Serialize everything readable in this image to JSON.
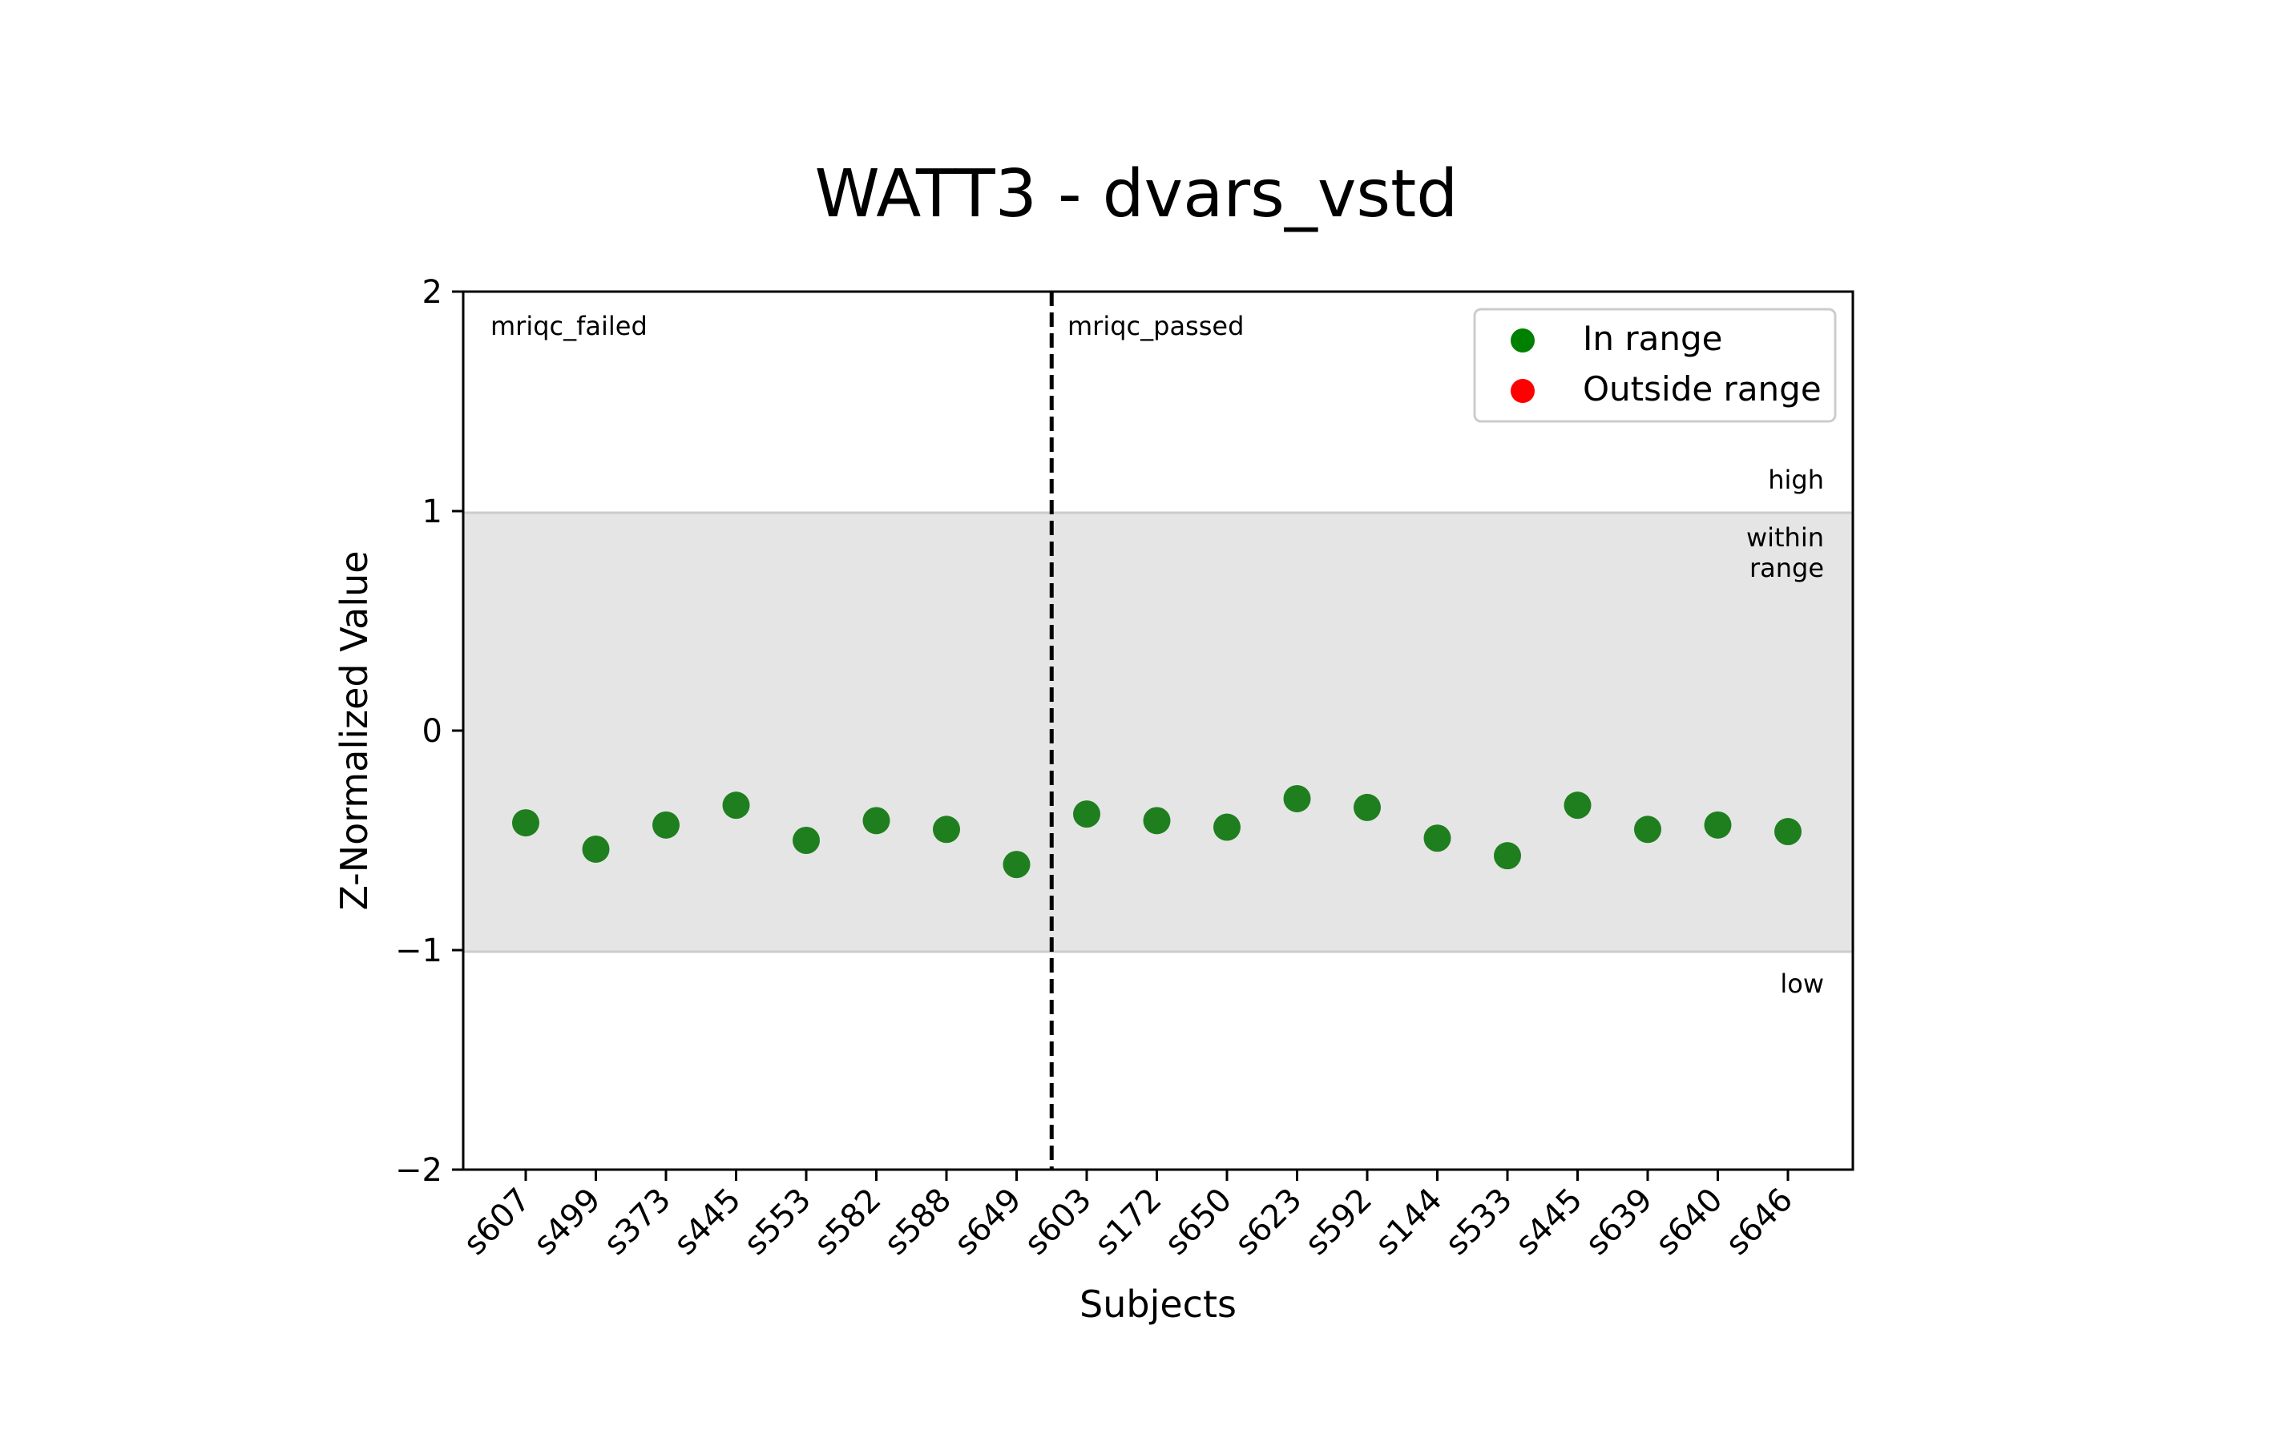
{
  "chart_data": {
    "type": "scatter",
    "title": "WATT3 - dvars_vstd",
    "xlabel": "Subjects",
    "ylabel": "Z-Normalized Value",
    "ylim": [
      -2,
      2
    ],
    "yticks": [
      {
        "value": 2,
        "label": "2"
      },
      {
        "value": 1,
        "label": "1"
      },
      {
        "value": 0,
        "label": "0"
      },
      {
        "value": -1,
        "label": "−1"
      },
      {
        "value": -2,
        "label": "−2"
      }
    ],
    "categories": [
      "s607",
      "s499",
      "s373",
      "s445",
      "s553",
      "s582",
      "s588",
      "s649",
      "s603",
      "s172",
      "s650",
      "s623",
      "s592",
      "s144",
      "s533",
      "s445",
      "s639",
      "s640",
      "s646"
    ],
    "values": [
      -0.42,
      -0.54,
      -0.43,
      -0.34,
      -0.5,
      -0.41,
      -0.45,
      -0.61,
      -0.38,
      -0.41,
      -0.44,
      -0.31,
      -0.35,
      -0.49,
      -0.57,
      -0.34,
      -0.45,
      -0.43,
      -0.46
    ],
    "status": [
      "in",
      "in",
      "in",
      "in",
      "in",
      "in",
      "in",
      "in",
      "in",
      "in",
      "in",
      "in",
      "in",
      "in",
      "in",
      "in",
      "in",
      "in",
      "in"
    ],
    "range_band": {
      "low": -1,
      "high": 1,
      "color": "#e5e5e5",
      "edge_color": "#cccccc"
    },
    "band_labels": {
      "high": "high",
      "within": [
        "within",
        "range"
      ],
      "low": "low"
    },
    "groups": [
      {
        "label": "mriqc_failed",
        "count": 8
      },
      {
        "label": "mriqc_passed",
        "count": 11
      }
    ],
    "divider_after_index": 7,
    "legend": {
      "placement": "top-right",
      "entries": [
        {
          "label": "In range",
          "color": "#008000"
        },
        {
          "label": "Outside range",
          "color": "#ff0000"
        }
      ]
    },
    "colors": {
      "in_range": "#1f7f1f",
      "outside_range": "#ff0000",
      "axis": "#000000"
    }
  }
}
